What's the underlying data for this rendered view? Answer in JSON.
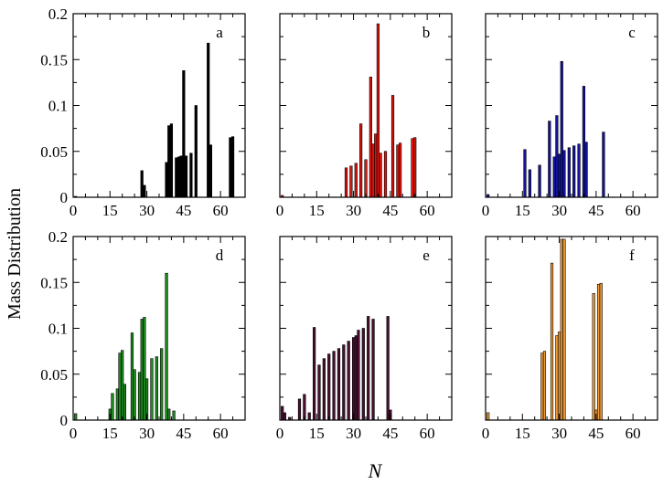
{
  "chart_data": {
    "type": "bar",
    "ylabel": "Mass Distribution",
    "xlabel": "N",
    "xlim": [
      0,
      70
    ],
    "ylim": [
      0,
      0.2
    ],
    "xticks": [
      "0",
      "15",
      "30",
      "45",
      "60"
    ],
    "yticks": [
      "0",
      "0.05",
      "0.1",
      "0.15",
      "0.2"
    ],
    "grid": false,
    "panels": [
      {
        "label": "a",
        "color": "#000000",
        "x": [
          1,
          28,
          29,
          38,
          39,
          40,
          42,
          43,
          44,
          45,
          46,
          48,
          50,
          55,
          56,
          64,
          65
        ],
        "values": [
          0.001,
          0.029,
          0.013,
          0.038,
          0.078,
          0.08,
          0.043,
          0.044,
          0.045,
          0.138,
          0.045,
          0.048,
          0.1,
          0.168,
          0.057,
          0.065,
          0.066
        ]
      },
      {
        "label": "b",
        "color": "#e3120b",
        "x": [
          1,
          27,
          29,
          31,
          33,
          35,
          37,
          38,
          39,
          40,
          41,
          43,
          46,
          48,
          49,
          54,
          55
        ],
        "values": [
          0.002,
          0.032,
          0.034,
          0.037,
          0.08,
          0.041,
          0.131,
          0.058,
          0.069,
          0.189,
          0.048,
          0.05,
          0.111,
          0.057,
          0.059,
          0.064,
          0.065
        ]
      },
      {
        "label": "c",
        "color": "#1414a0",
        "x": [
          1,
          16,
          18,
          22,
          26,
          28,
          29,
          30,
          31,
          32,
          34,
          36,
          38,
          40,
          41,
          48
        ],
        "values": [
          0.003,
          0.052,
          0.03,
          0.035,
          0.083,
          0.044,
          0.089,
          0.047,
          0.148,
          0.051,
          0.054,
          0.056,
          0.058,
          0.121,
          0.06,
          0.071
        ]
      },
      {
        "label": "d",
        "color": "#1e8c1e",
        "x": [
          1,
          15,
          16,
          18,
          19,
          20,
          21,
          24,
          25,
          27,
          28,
          29,
          30,
          32,
          34,
          36,
          38,
          39,
          41
        ],
        "values": [
          0.007,
          0.012,
          0.029,
          0.034,
          0.073,
          0.076,
          0.039,
          0.095,
          0.055,
          0.052,
          0.11,
          0.112,
          0.045,
          0.067,
          0.069,
          0.078,
          0.16,
          0.012,
          0.01
        ]
      },
      {
        "label": "e",
        "color": "#4a1030",
        "x": [
          1,
          2,
          4,
          8,
          10,
          12,
          14,
          16,
          18,
          20,
          22,
          24,
          26,
          28,
          30,
          31,
          32,
          34,
          36,
          38,
          44,
          45
        ],
        "values": [
          0.015,
          0.008,
          0.003,
          0.023,
          0.028,
          0.008,
          0.101,
          0.06,
          0.067,
          0.072,
          0.075,
          0.078,
          0.082,
          0.086,
          0.09,
          0.092,
          0.098,
          0.1,
          0.113,
          0.11,
          0.113,
          0.011
        ]
      },
      {
        "label": "f",
        "color": "#ee9b3a",
        "x": [
          1,
          23,
          24,
          27,
          29,
          30,
          31,
          32,
          44,
          45,
          46,
          47
        ],
        "values": [
          0.008,
          0.073,
          0.075,
          0.171,
          0.092,
          0.096,
          0.197,
          0.197,
          0.138,
          0.011,
          0.148,
          0.149
        ]
      }
    ]
  }
}
